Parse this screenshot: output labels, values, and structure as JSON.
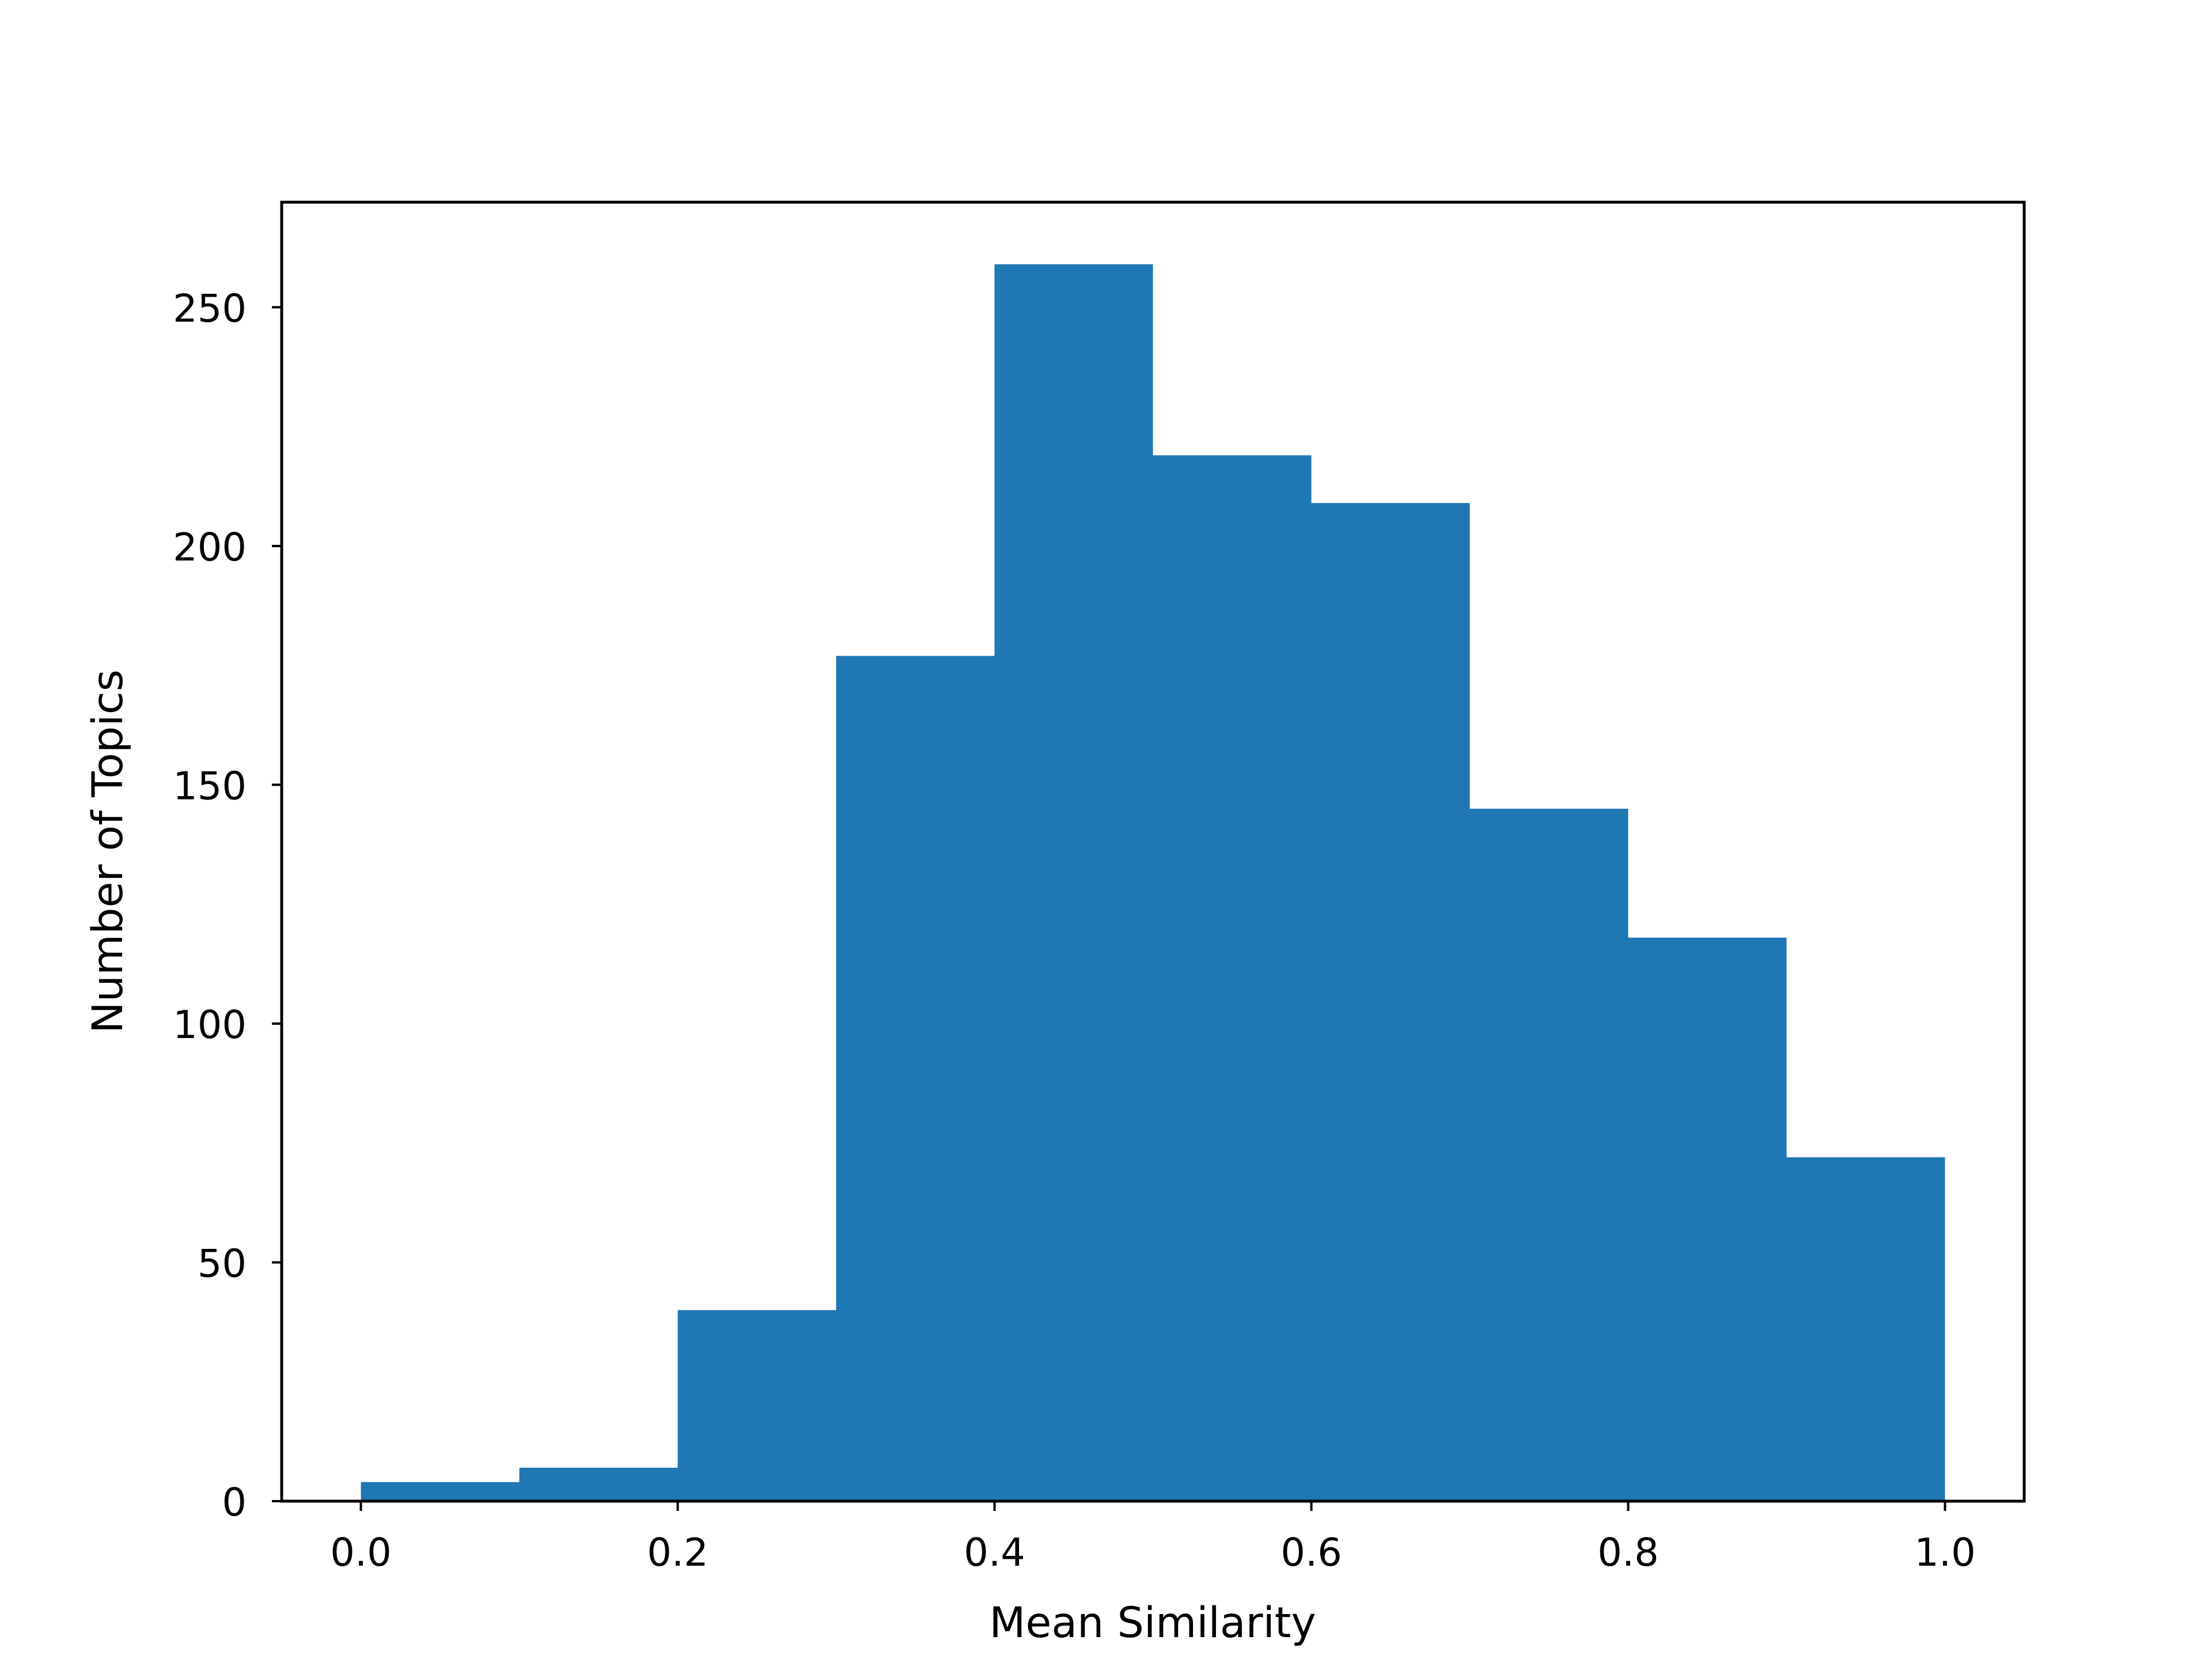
{
  "chart_data": {
    "type": "bar",
    "title": "",
    "xlabel": "Mean Similarity",
    "ylabel": "Number of Topics",
    "bins": [
      {
        "x0": 0.0,
        "x1": 0.1,
        "count": 4
      },
      {
        "x0": 0.1,
        "x1": 0.2,
        "count": 7
      },
      {
        "x0": 0.2,
        "x1": 0.3,
        "count": 40
      },
      {
        "x0": 0.3,
        "x1": 0.4,
        "count": 177
      },
      {
        "x0": 0.4,
        "x1": 0.5,
        "count": 259
      },
      {
        "x0": 0.5,
        "x1": 0.6,
        "count": 219
      },
      {
        "x0": 0.6,
        "x1": 0.7,
        "count": 209
      },
      {
        "x0": 0.7,
        "x1": 0.8,
        "count": 145
      },
      {
        "x0": 0.8,
        "x1": 0.9,
        "count": 118
      },
      {
        "x0": 0.9,
        "x1": 1.0,
        "count": 72
      }
    ],
    "xlim": [
      -0.05,
      1.05
    ],
    "ylim": [
      0,
      272
    ],
    "xticks": [
      0.0,
      0.2,
      0.4,
      0.6,
      0.8,
      1.0
    ],
    "xtick_labels": [
      "0.0",
      "0.2",
      "0.4",
      "0.6",
      "0.8",
      "1.0"
    ],
    "yticks": [
      0,
      50,
      100,
      150,
      200,
      250
    ],
    "ytick_labels": [
      "0",
      "50",
      "100",
      "150",
      "200",
      "250"
    ],
    "bar_color": "#1f77b4",
    "grid": false,
    "legend": "none"
  }
}
